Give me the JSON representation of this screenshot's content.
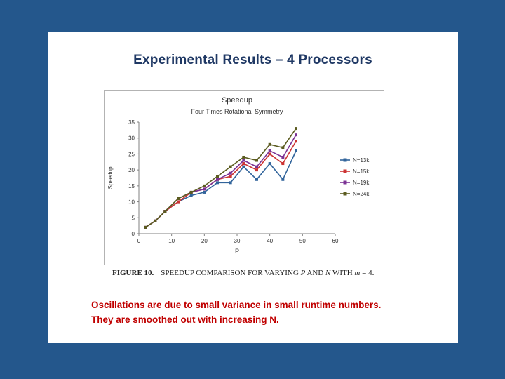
{
  "page": {
    "background_color": "#24578C"
  },
  "slide": {
    "title": "Experimental Results – 4 Processors",
    "title_color": "#1F3864",
    "caption": {
      "label": "FIGURE 10.",
      "t1": "SPEEDUP COMPARISON FOR VARYING ",
      "i1": "P",
      "t2": " AND ",
      "i2": "N",
      "t3": " WITH ",
      "i3": "m",
      "t4": " = 4."
    },
    "note": {
      "line1": "Oscillations are due to small variance in small runtime numbers.",
      "line2": "They are smoothed out with increasing N.",
      "color": "#C00000"
    }
  },
  "chart_data": {
    "type": "line",
    "title": "Speedup",
    "subtitle": "Four Times Rotational Symmetry",
    "xlabel": "P",
    "ylabel": "Speedup",
    "xlim": [
      0,
      60
    ],
    "ylim": [
      0,
      35
    ],
    "xticks": [
      0,
      10,
      20,
      30,
      40,
      50,
      60
    ],
    "yticks": [
      0,
      5,
      10,
      15,
      20,
      25,
      30,
      35
    ],
    "grid": false,
    "legend_position": "right",
    "x": [
      2,
      5,
      8,
      12,
      16,
      20,
      24,
      28,
      32,
      36,
      40,
      44,
      48
    ],
    "series": [
      {
        "name": "N=13k",
        "color": "#31649B",
        "values": [
          2,
          4,
          7,
          10,
          12,
          13,
          16,
          16,
          21,
          17,
          22,
          17,
          26
        ]
      },
      {
        "name": "N=15k",
        "color": "#CC3333",
        "values": [
          2,
          4,
          7,
          10,
          13,
          14,
          17,
          18,
          22,
          20,
          25,
          22,
          29
        ]
      },
      {
        "name": "N=19k",
        "color": "#7B3294",
        "values": [
          2,
          4,
          7,
          11,
          13,
          14,
          17,
          19,
          23,
          21,
          26,
          24,
          31
        ]
      },
      {
        "name": "N=24k",
        "color": "#5B5B1F",
        "values": [
          2,
          4,
          7,
          11,
          13,
          15,
          18,
          21,
          24,
          23,
          28,
          27,
          33
        ]
      }
    ]
  }
}
